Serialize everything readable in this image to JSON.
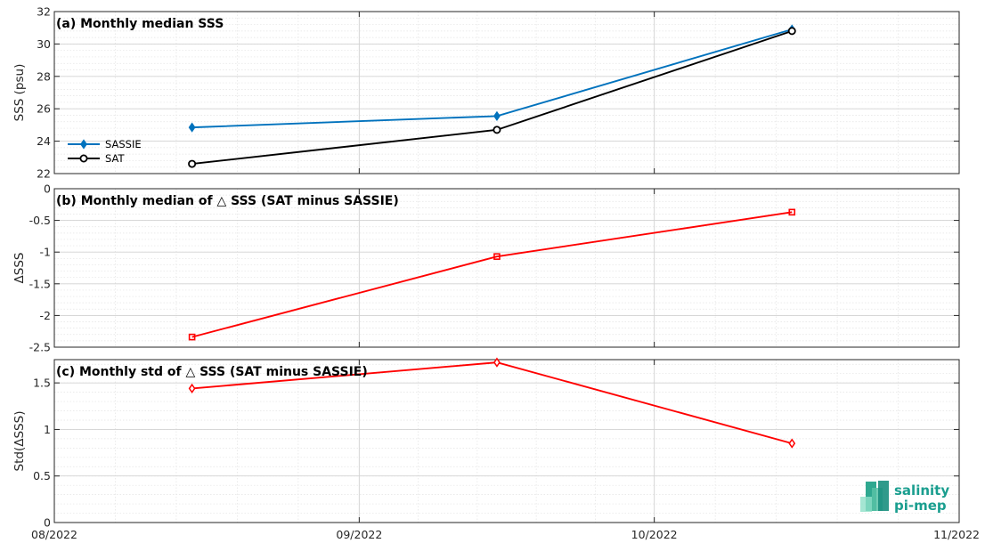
{
  "chart_data": [
    {
      "type": "line",
      "title": "(a) Monthly median SSS",
      "ylabel": "SSS (psu)",
      "ylim": [
        22,
        32
      ],
      "yticks": [
        22,
        24,
        26,
        28,
        30,
        32
      ],
      "ytick_labels": [
        "22",
        "24",
        "26",
        "28",
        "30",
        "32"
      ],
      "x": [
        "2022-08-15",
        "2022-09-15",
        "2022-10-15"
      ],
      "series": [
        {
          "name": "SASSIE",
          "values": [
            24.85,
            25.55,
            30.9
          ],
          "color": "#0072BD",
          "marker": "diamond"
        },
        {
          "name": "SAT",
          "values": [
            22.6,
            24.7,
            30.8
          ],
          "color": "#000000",
          "marker": "circle"
        }
      ],
      "legend": "left",
      "grid": true
    },
    {
      "type": "line",
      "title": "(b) Monthly median of △ SSS (SAT minus SASSIE)",
      "ylabel": "ΔSSS",
      "ylim": [
        -2.5,
        0
      ],
      "yticks": [
        -2.5,
        -2,
        -1.5,
        -1,
        -0.5,
        0
      ],
      "ytick_labels": [
        "-2.5",
        "-2",
        "-1.5",
        "-1",
        "-0.5",
        "0"
      ],
      "x": [
        "2022-08-15",
        "2022-09-15",
        "2022-10-15"
      ],
      "series": [
        {
          "values": [
            -2.34,
            -1.07,
            -0.37
          ],
          "color": "#FF0000",
          "marker": "square"
        }
      ],
      "reference_line": 0,
      "grid": true
    },
    {
      "type": "line",
      "title": "(c) Monthly std of △ SSS (SAT minus SASSIE)",
      "ylabel": "Std(ΔSSS)",
      "ylim": [
        0,
        1.75
      ],
      "yticks": [
        0,
        0.5,
        1,
        1.5
      ],
      "ytick_labels": [
        "0",
        "0.5",
        "1",
        "1.5"
      ],
      "x": [
        "2022-08-15",
        "2022-09-15",
        "2022-10-15"
      ],
      "series": [
        {
          "values": [
            1.44,
            1.72,
            0.85
          ],
          "color": "#FF0000",
          "marker": "diamond"
        }
      ],
      "grid": true
    }
  ],
  "x_axis": {
    "xlim": [
      "2022-08-01",
      "2022-11-01"
    ],
    "ticks": [
      "2022-08-01",
      "2022-09-01",
      "2022-10-01",
      "2022-11-01"
    ],
    "tick_labels": [
      "08/2022",
      "09/2022",
      "10/2022",
      "11/2022"
    ]
  },
  "logo": {
    "line1": "salinity",
    "line2": "pi-mep",
    "color": "#1a9e8f"
  }
}
